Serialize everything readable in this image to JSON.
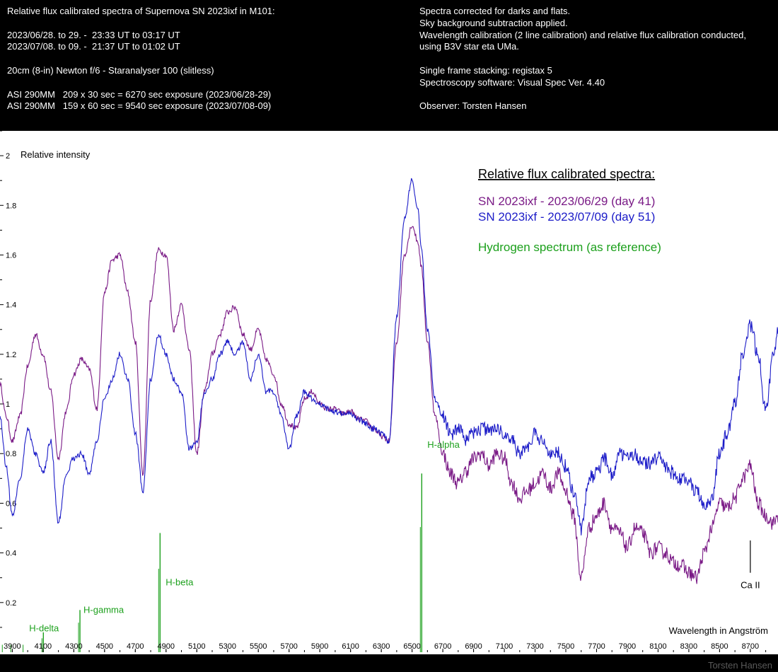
{
  "header": {
    "left_lines": [
      "Relative flux calibrated spectra of Supernova SN 2023ixf in M101:",
      "",
      "2023/06/28. to 29. -  23:33 UT to 03:17 UT",
      "2023/07/08. to 09. -  21:37 UT to 01:02 UT",
      "",
      "20cm (8-in) Newton f/6 - Staranalyser 100 (slitless)",
      "",
      "ASI 290MM   209 x 30 sec = 6270 sec exposure (2023/06/28-29)",
      "ASI 290MM   159 x 60 sec = 9540 sec exposure (2023/07/08-09)"
    ],
    "right_lines": [
      "Spectra corrected for darks and flats.",
      "Sky background subtraction applied.",
      "Wavelength calibration (2 line calibration) and relative flux calibration conducted,",
      "using B3V star eta UMa.",
      "",
      "Single frame stacking: registax 5",
      "Spectroscopy software: Visual Spec Ver. 4.40",
      "",
      "Observer: Torsten Hansen"
    ]
  },
  "signature": "Torsten Hansen",
  "colors": {
    "day41": "#7a1a86",
    "day51": "#1c1cc8",
    "hydrogen": "#1ca01c",
    "background": "#000000",
    "plot_bg": "#ffffff"
  },
  "chart_data": {
    "type": "line",
    "title": "Relative flux calibrated spectra:",
    "xlabel": "Wavelength in Angström",
    "ylabel": "Relative intensity",
    "xlim": [
      3820,
      8880
    ],
    "ylim": [
      0,
      2.1
    ],
    "x_ticks": [
      3900,
      4100,
      4300,
      4500,
      4700,
      4900,
      5100,
      5300,
      5500,
      5700,
      5900,
      6100,
      6300,
      6500,
      6700,
      6900,
      7100,
      7300,
      7500,
      7700,
      7900,
      8100,
      8300,
      8500,
      8700
    ],
    "y_ticks": [
      0.2,
      0.4,
      0.6,
      0.8,
      1,
      1.2,
      1.4,
      1.6,
      1.8,
      2
    ],
    "y_tick_labels": [
      "0.2",
      "0.4",
      "0.6",
      "0.8",
      "1",
      "1.2",
      "1.4",
      "1.6",
      "1.8",
      "2"
    ],
    "legend": [
      {
        "name": "SN 2023ixf - 2023/06/29 (day 41)",
        "color": "#7a1a86"
      },
      {
        "name": "SN 2023ixf - 2023/07/09 (day 51)",
        "color": "#1c1cc8"
      },
      {
        "name": "Hydrogen spectrum (as reference)",
        "color": "#1ca01c"
      }
    ],
    "series": [
      {
        "name": "SN 2023ixf - 2023/06/29 (day 41)",
        "color": "#7a1a86",
        "x": [
          3820,
          3860,
          3900,
          3950,
          4000,
          4050,
          4100,
          4150,
          4200,
          4250,
          4300,
          4350,
          4400,
          4450,
          4500,
          4550,
          4600,
          4650,
          4700,
          4750,
          4800,
          4850,
          4900,
          4950,
          5000,
          5050,
          5100,
          5150,
          5200,
          5250,
          5300,
          5350,
          5400,
          5450,
          5500,
          5550,
          5600,
          5650,
          5700,
          5750,
          5800,
          5850,
          5900,
          5950,
          6000,
          6050,
          6100,
          6150,
          6200,
          6250,
          6300,
          6350,
          6400,
          6450,
          6500,
          6540,
          6560,
          6600,
          6650,
          6700,
          6750,
          6800,
          6850,
          6900,
          6950,
          7000,
          7050,
          7100,
          7150,
          7200,
          7250,
          7300,
          7350,
          7400,
          7450,
          7500,
          7550,
          7600,
          7650,
          7700,
          7750,
          7800,
          7850,
          7900,
          7950,
          8000,
          8050,
          8100,
          8150,
          8200,
          8250,
          8300,
          8350,
          8400,
          8450,
          8500,
          8550,
          8600,
          8650,
          8700,
          8750,
          8800,
          8850,
          8880
        ],
        "y": [
          1.08,
          0.95,
          0.85,
          0.95,
          1.15,
          1.28,
          1.2,
          1.05,
          0.78,
          0.97,
          1.12,
          1.18,
          1.14,
          0.98,
          1.45,
          1.58,
          1.6,
          1.45,
          1.25,
          0.72,
          1.42,
          1.62,
          1.6,
          1.3,
          1.4,
          1.22,
          0.8,
          1.05,
          1.2,
          1.28,
          1.37,
          1.39,
          1.28,
          1.22,
          1.3,
          1.18,
          1.12,
          1.0,
          0.92,
          0.9,
          1.02,
          1.05,
          1.0,
          0.98,
          0.98,
          0.96,
          0.97,
          0.94,
          0.93,
          0.9,
          0.87,
          0.85,
          1.25,
          1.6,
          1.72,
          1.65,
          1.55,
          1.25,
          0.95,
          0.8,
          0.72,
          0.68,
          0.73,
          0.78,
          0.8,
          0.75,
          0.8,
          0.78,
          0.68,
          0.62,
          0.65,
          0.68,
          0.72,
          0.66,
          0.72,
          0.65,
          0.55,
          0.3,
          0.5,
          0.55,
          0.6,
          0.5,
          0.48,
          0.42,
          0.5,
          0.48,
          0.4,
          0.42,
          0.4,
          0.36,
          0.35,
          0.32,
          0.3,
          0.4,
          0.5,
          0.6,
          0.58,
          0.62,
          0.7,
          0.75,
          0.6,
          0.55,
          0.52,
          0.55
        ]
      },
      {
        "name": "SN 2023ixf - 2023/07/09 (day 51)",
        "color": "#1c1cc8",
        "x": [
          3820,
          3860,
          3900,
          3950,
          4000,
          4050,
          4100,
          4150,
          4200,
          4250,
          4300,
          4350,
          4400,
          4450,
          4500,
          4550,
          4600,
          4650,
          4700,
          4750,
          4800,
          4850,
          4900,
          4950,
          5000,
          5050,
          5100,
          5150,
          5200,
          5250,
          5300,
          5350,
          5400,
          5450,
          5500,
          5550,
          5600,
          5650,
          5700,
          5750,
          5800,
          5850,
          5900,
          5950,
          6000,
          6050,
          6100,
          6150,
          6200,
          6250,
          6300,
          6350,
          6400,
          6450,
          6500,
          6540,
          6560,
          6600,
          6650,
          6700,
          6750,
          6800,
          6850,
          6900,
          6950,
          7000,
          7050,
          7100,
          7150,
          7200,
          7250,
          7300,
          7350,
          7400,
          7450,
          7500,
          7550,
          7600,
          7650,
          7700,
          7750,
          7800,
          7850,
          7900,
          7950,
          8000,
          8050,
          8100,
          8150,
          8200,
          8250,
          8300,
          8350,
          8400,
          8450,
          8500,
          8550,
          8600,
          8650,
          8700,
          8750,
          8800,
          8850,
          8880
        ],
        "y": [
          0.95,
          0.75,
          0.55,
          0.7,
          0.9,
          0.8,
          0.72,
          0.85,
          0.52,
          0.72,
          0.78,
          0.8,
          0.72,
          0.85,
          1.02,
          1.1,
          1.2,
          1.1,
          0.88,
          0.65,
          1.1,
          1.28,
          1.2,
          1.1,
          1.05,
          0.82,
          0.85,
          1.05,
          1.1,
          1.2,
          1.25,
          1.2,
          1.25,
          1.1,
          1.2,
          1.05,
          1.05,
          0.95,
          0.82,
          0.95,
          1.05,
          1.02,
          1.0,
          0.98,
          0.97,
          0.96,
          0.96,
          0.94,
          0.92,
          0.9,
          0.88,
          0.85,
          1.35,
          1.75,
          1.9,
          1.78,
          1.62,
          1.3,
          1.02,
          0.95,
          0.88,
          0.9,
          0.85,
          0.88,
          0.9,
          0.9,
          0.9,
          0.88,
          0.85,
          0.8,
          0.82,
          0.88,
          0.85,
          0.8,
          0.8,
          0.75,
          0.65,
          0.5,
          0.7,
          0.72,
          0.78,
          0.72,
          0.8,
          0.78,
          0.8,
          0.76,
          0.76,
          0.78,
          0.75,
          0.72,
          0.7,
          0.68,
          0.65,
          0.58,
          0.62,
          0.8,
          0.88,
          1.0,
          1.2,
          1.32,
          1.2,
          0.98,
          1.2,
          1.3
        ]
      },
      {
        "name": "Hydrogen spectrum (as reference)",
        "type": "lines",
        "color": "#1ca01c",
        "lines": [
          {
            "label": "H-alpha",
            "x": 6563,
            "y": 0.72
          },
          {
            "label": "H-beta",
            "x": 4861,
            "y": 0.48
          },
          {
            "label": "H-gamma",
            "x": 4340,
            "y": 0.17
          },
          {
            "label": "H-delta",
            "x": 4102,
            "y": 0.08
          }
        ]
      }
    ],
    "annotations": [
      {
        "label": "Ca II",
        "x": 8700,
        "y": 0.45
      }
    ]
  }
}
